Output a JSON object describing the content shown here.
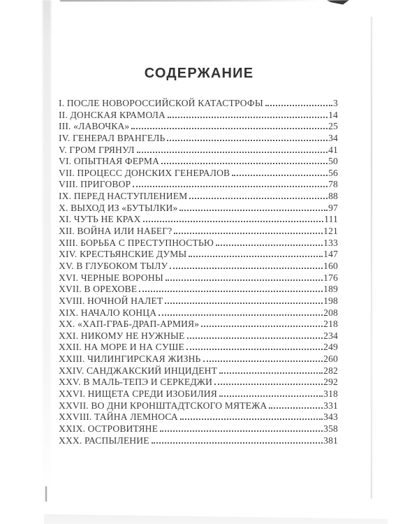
{
  "page": {
    "title": "СОДЕРЖАНИЕ",
    "entries": [
      {
        "label": "I. ПОСЛЕ НОВОРОССИЙСКОЙ КАТАСТРОФЫ",
        "page": "3"
      },
      {
        "label": "II. ДОНСКАЯ КРАМОЛА",
        "page": "14"
      },
      {
        "label": "III. «ЛАВОЧКА»",
        "page": "25"
      },
      {
        "label": "IV. ГЕНЕРАЛ ВРАНГЕЛЬ",
        "page": "34"
      },
      {
        "label": "V. ГРОМ ГРЯНУЛ",
        "page": "41"
      },
      {
        "label": "VI. ОПЫТНАЯ ФЕРМА",
        "page": "50"
      },
      {
        "label": "VII. ПРОЦЕСС ДОНСКИХ ГЕНЕРАЛОВ",
        "page": "56"
      },
      {
        "label": "VIII. ПРИГОВОР",
        "page": "78"
      },
      {
        "label": "IX. ПЕРЕД НАСТУПЛЕНИЕМ",
        "page": "88"
      },
      {
        "label": "X. ВЫХОД ИЗ «БУТЫЛКИ»",
        "page": "97"
      },
      {
        "label": "XI. ЧУТЬ НЕ КРАХ",
        "page": "111"
      },
      {
        "label": "XII. ВОЙНА ИЛИ НАБЕГ?",
        "page": "121"
      },
      {
        "label": "XIII. БОРЬБА С ПРЕСТУПНОСТЬЮ",
        "page": "133"
      },
      {
        "label": "XIV. КРЕСТЬЯНСКИЕ ДУМЫ",
        "page": "147"
      },
      {
        "label": "XV. В ГЛУБОКОМ ТЫЛУ",
        "page": "160"
      },
      {
        "label": "XVI. ЧЕРНЫЕ ВОРОНЫ",
        "page": "176"
      },
      {
        "label": "XVII. В ОРЕХОВЕ",
        "page": "189"
      },
      {
        "label": "XVIII. НОЧНОЙ НАЛЕТ",
        "page": "198"
      },
      {
        "label": "XIX. НАЧАЛО КОНЦА",
        "page": "208"
      },
      {
        "label": "XX. «ХАП-ГРАБ-ДРАП-АРМИЯ»",
        "page": "218"
      },
      {
        "label": "XXI. НИКОМУ НЕ НУЖНЫЕ",
        "page": "234"
      },
      {
        "label": "XXII. НА МОРЕ И НА СУШЕ",
        "page": "249"
      },
      {
        "label": "XXIII. ЧИЛИНГИРСКАЯ ЖИЗНЬ",
        "page": "260"
      },
      {
        "label": "XXIV. САНДЖАКСКИЙ ИНЦИДЕНТ",
        "page": "282"
      },
      {
        "label": "XXV. В МАЛЬ-ТЕПЭ И СЕРКЕДЖИ",
        "page": "292"
      },
      {
        "label": "XXVI. НИЩЕТА СРЕДИ ИЗОБИЛИЯ",
        "page": "318"
      },
      {
        "label": "XXVII. ВО ДНИ КРОНШТАДТСКОГО МЯТЕЖА",
        "page": "331"
      },
      {
        "label": "XXVIII. ТАЙНА ЛЕМНОСА",
        "page": "343"
      },
      {
        "label": "XXIX. ОСТРОВИТЯНЕ",
        "page": "358"
      },
      {
        "label": "XXX. РАСПЫЛЕНИЕ",
        "page": "381"
      }
    ]
  }
}
